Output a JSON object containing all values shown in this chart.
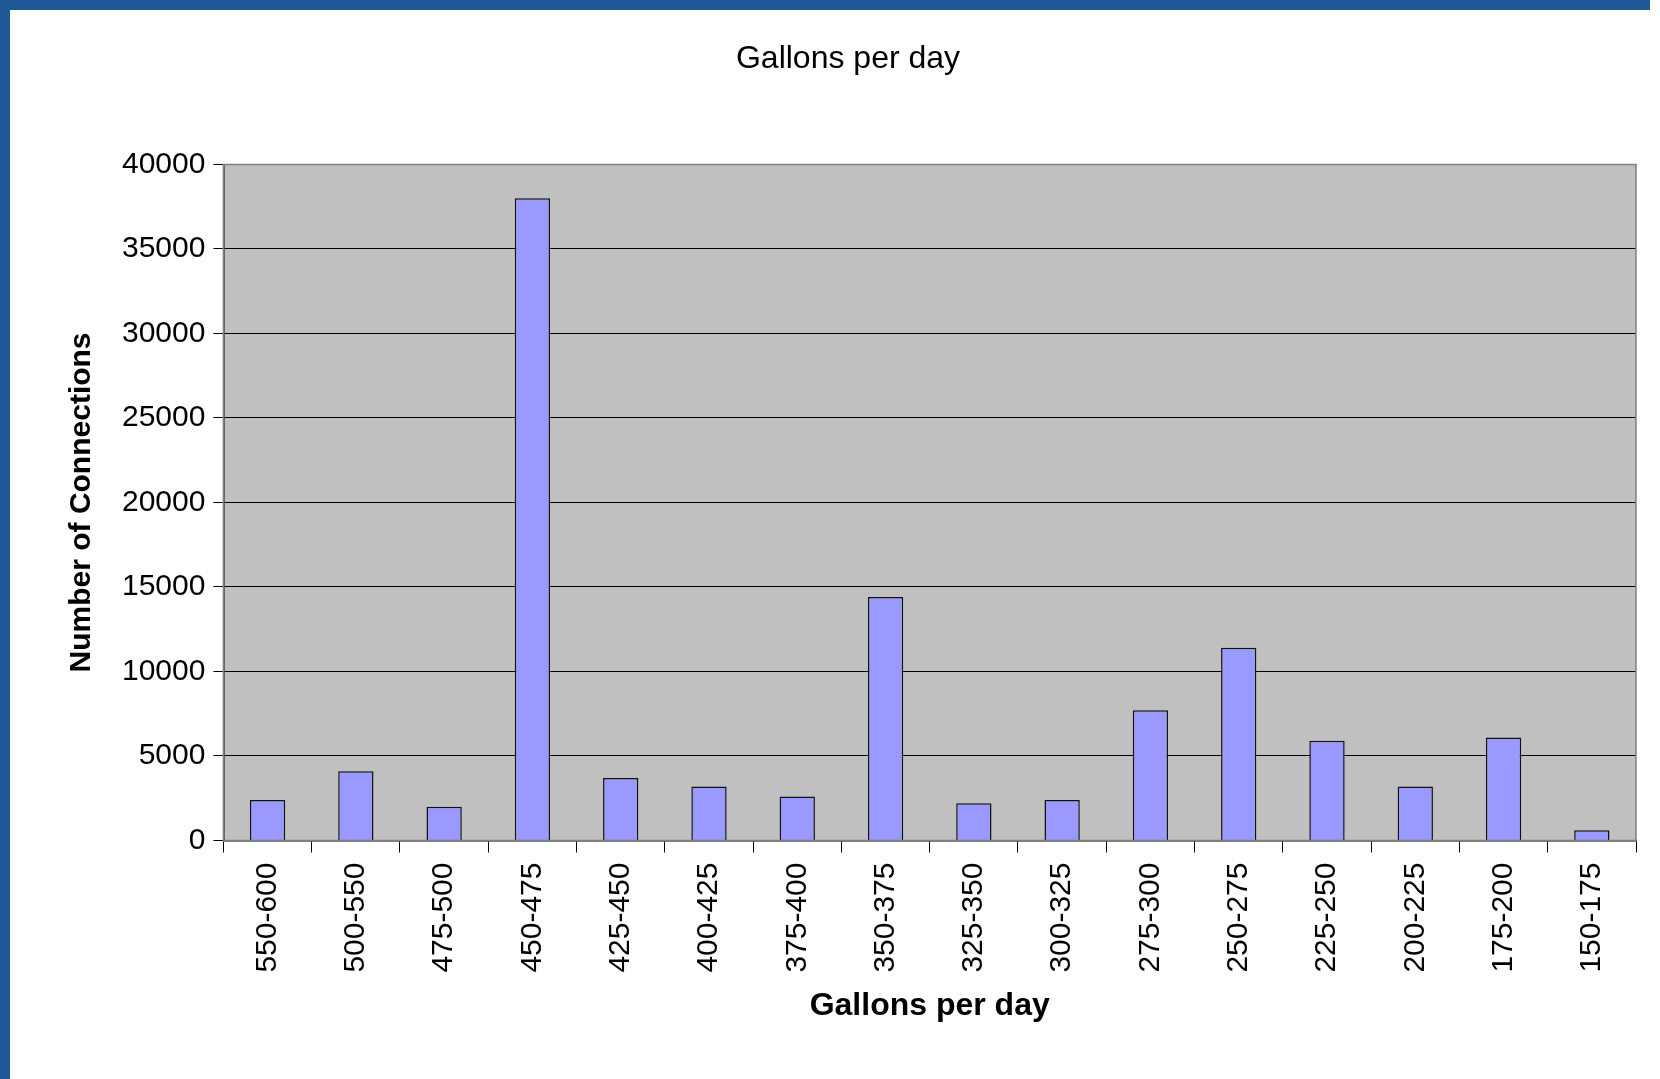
{
  "chart_data": {
    "type": "bar",
    "title": "Gallons per day",
    "xlabel": "Gallons per day",
    "ylabel": "Number of Connections",
    "categories": [
      "550-600",
      "500-550",
      "475-500",
      "450-475",
      "425-450",
      "400-425",
      "375-400",
      "350-375",
      "325-350",
      "300-325",
      "275-300",
      "250-275",
      "225-250",
      "200-225",
      "175-200",
      "150-175"
    ],
    "values": [
      2400,
      4100,
      2000,
      38000,
      3700,
      3200,
      2600,
      14400,
      2200,
      2400,
      7700,
      11400,
      5900,
      3200,
      6100,
      600
    ],
    "color": "#9999ff",
    "ylim": [
      0,
      40000
    ],
    "yticks": [
      0,
      5000,
      10000,
      15000,
      20000,
      25000,
      30000,
      35000,
      40000
    ],
    "grid": "y",
    "legend": false
  }
}
